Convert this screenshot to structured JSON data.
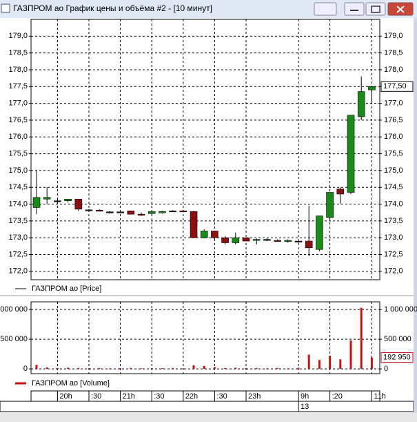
{
  "window_title": "ГАЗПРОМ ао График цены и объёма #2 - [10 минут]",
  "chart_data": [
    {
      "type": "candlestick",
      "legend": "ГАЗПРОМ ао [Price]",
      "up_color": "#1a8a1a",
      "down_color": "#8b1010",
      "flat_color": "#222222",
      "open": [
        173.9,
        174.15,
        174.1,
        174.1,
        174.15,
        173.83,
        173.82,
        173.77,
        173.77,
        173.8,
        173.7,
        173.72,
        173.74,
        173.8,
        173.8,
        173.78,
        173.0,
        173.2,
        173.0,
        172.85,
        173.0,
        172.92,
        172.95,
        172.92,
        172.9,
        172.9,
        172.9,
        172.65,
        173.6,
        174.45,
        174.35,
        176.6,
        177.4
      ],
      "high": [
        175.0,
        174.5,
        174.15,
        174.15,
        174.15,
        173.85,
        173.85,
        173.8,
        173.8,
        173.8,
        173.75,
        173.8,
        173.8,
        173.82,
        173.82,
        173.8,
        173.25,
        173.2,
        173.05,
        173.15,
        173.0,
        172.98,
        173.0,
        172.95,
        172.95,
        172.95,
        173.95,
        173.65,
        174.35,
        174.5,
        176.65,
        177.8,
        177.5
      ],
      "low": [
        173.7,
        174.0,
        174.05,
        174.05,
        173.8,
        173.8,
        173.78,
        173.72,
        173.75,
        173.7,
        173.65,
        173.7,
        173.72,
        173.78,
        173.76,
        173.0,
        172.98,
        172.95,
        172.8,
        172.8,
        172.9,
        172.8,
        172.9,
        172.88,
        172.85,
        172.85,
        172.45,
        172.6,
        173.55,
        174.0,
        174.3,
        176.5,
        177.0
      ],
      "close": [
        174.2,
        174.2,
        174.1,
        174.15,
        173.85,
        173.83,
        173.8,
        173.77,
        173.77,
        173.7,
        173.68,
        173.78,
        173.78,
        173.8,
        173.78,
        173.0,
        173.2,
        173.0,
        172.85,
        173.0,
        172.9,
        172.95,
        172.95,
        172.9,
        172.92,
        172.9,
        172.7,
        173.65,
        174.35,
        174.3,
        176.65,
        177.35,
        177.5
      ],
      "last_value_label": "177,50",
      "ylim": [
        171.75,
        179.5
      ],
      "yticks": [
        {
          "value": 172,
          "label": "172,0"
        },
        {
          "value": 172.5,
          "label": "172,5"
        },
        {
          "value": 173,
          "label": "173,0"
        },
        {
          "value": 173.5,
          "label": "173,5"
        },
        {
          "value": 174,
          "label": "174,0"
        },
        {
          "value": 174.5,
          "label": "174,5"
        },
        {
          "value": 175,
          "label": "175,0"
        },
        {
          "value": 175.5,
          "label": "175,5"
        },
        {
          "value": 176,
          "label": "176,0"
        },
        {
          "value": 176.5,
          "label": "176,5"
        },
        {
          "value": 177,
          "label": "177,0"
        },
        {
          "value": 177.5,
          "label": "177,5"
        },
        {
          "value": 178,
          "label": "178,0"
        },
        {
          "value": 178.5,
          "label": "178,5"
        },
        {
          "value": 179,
          "label": "179,0"
        }
      ],
      "grid": true
    },
    {
      "type": "bar",
      "legend": "ГАЗПРОМ ао [Volume]",
      "color": "#cc1111",
      "categories": [
        null,
        null,
        "20h",
        null,
        null,
        ":30",
        null,
        null,
        "21h",
        null,
        null,
        ":30",
        null,
        null,
        "22h",
        null,
        null,
        ":30",
        null,
        null,
        "23h",
        null,
        null,
        null,
        null,
        "9h",
        null,
        null,
        ":20",
        null,
        null,
        null,
        "11h"
      ],
      "values": [
        70000,
        25000,
        15000,
        20000,
        15000,
        12000,
        15000,
        10000,
        12000,
        15000,
        10000,
        10000,
        12000,
        15000,
        10000,
        60000,
        50000,
        30000,
        15000,
        20000,
        15000,
        15000,
        10000,
        15000,
        10000,
        20000,
        240000,
        150000,
        220000,
        160000,
        480000,
        1030000,
        192950
      ],
      "last_value_label": "192 950",
      "date": "13",
      "ylim": [
        -80000,
        1130000
      ],
      "yticks": [
        0,
        {
          "value": 500000,
          "label": "500 000"
        },
        {
          "value": 1000000,
          "label": "1 000 000"
        }
      ],
      "grid": true
    }
  ]
}
